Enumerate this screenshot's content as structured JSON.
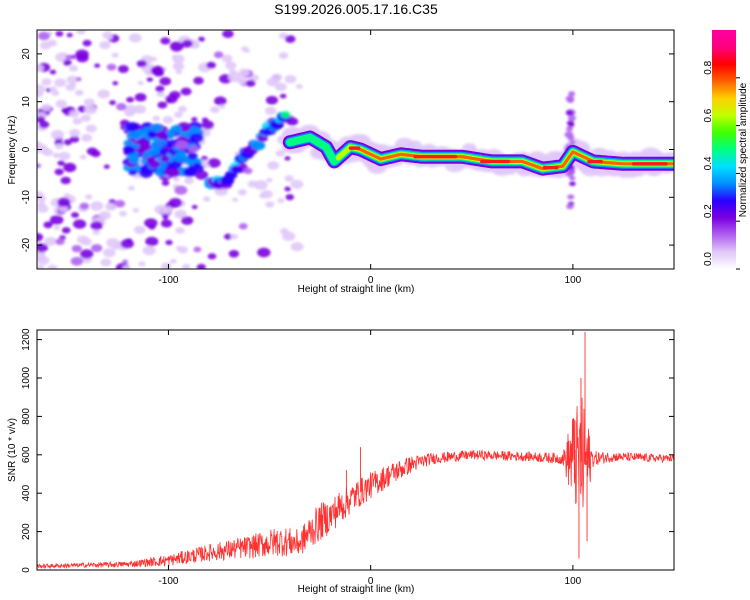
{
  "title": "S199.2026.005.17.16.C35",
  "chart_data": [
    {
      "type": "heatmap",
      "name": "spectrogram",
      "xlabel": "Height of straight line (km)",
      "ylabel": "Frequency (Hz)",
      "xlim": [
        -165,
        150
      ],
      "ylim": [
        -25,
        25
      ],
      "xticks": [
        -100,
        0,
        100
      ],
      "yticks": [
        -20,
        -10,
        0,
        10,
        20
      ],
      "xtick_labels": [
        "-100",
        "0",
        "100"
      ],
      "ytick_labels": [
        "-20",
        "-10",
        "0",
        "10",
        "20"
      ],
      "colorbar": {
        "label": "Normalized spectral amplitude",
        "range": [
          0,
          1
        ],
        "ticks": [
          0.0,
          0.2,
          0.4,
          0.6,
          0.8
        ],
        "tick_labels": [
          "0.0",
          "0.2",
          "0.4",
          "0.6",
          "0.8"
        ],
        "colors": [
          "#ffffff",
          "#e0c8f8",
          "#b060f0",
          "#7a00e0",
          "#2a00ff",
          "#0090ff",
          "#00e0ff",
          "#00ff80",
          "#40ff00",
          "#c0ff00",
          "#ffd000",
          "#ff6000",
          "#ff0000",
          "#ff0080",
          "#ff00a0"
        ]
      },
      "ridge": [
        {
          "x": -40,
          "y": 1.5,
          "a": 0.5
        },
        {
          "x": -30,
          "y": 2.5,
          "a": 0.5
        },
        {
          "x": -22,
          "y": 0.5,
          "a": 0.5
        },
        {
          "x": -18,
          "y": -2.5,
          "a": 0.6
        },
        {
          "x": -10,
          "y": 0.5,
          "a": 0.7
        },
        {
          "x": -5,
          "y": 0.0,
          "a": 0.8
        },
        {
          "x": 5,
          "y": -2.0,
          "a": 0.85
        },
        {
          "x": 15,
          "y": -1.0,
          "a": 0.85
        },
        {
          "x": 25,
          "y": -1.5,
          "a": 0.9
        },
        {
          "x": 45,
          "y": -1.5,
          "a": 0.9
        },
        {
          "x": 60,
          "y": -2.5,
          "a": 0.9
        },
        {
          "x": 75,
          "y": -2.5,
          "a": 0.85
        },
        {
          "x": 85,
          "y": -4.0,
          "a": 0.85
        },
        {
          "x": 95,
          "y": -3.5,
          "a": 0.8
        },
        {
          "x": 100,
          "y": -0.5,
          "a": 0.8
        },
        {
          "x": 110,
          "y": -2.5,
          "a": 0.9
        },
        {
          "x": 125,
          "y": -3.0,
          "a": 0.85
        },
        {
          "x": 150,
          "y": -3.0,
          "a": 0.8
        }
      ],
      "diagonal_branch": [
        {
          "x": -80,
          "y": -7,
          "a": 0.3
        },
        {
          "x": -70,
          "y": -6,
          "a": 0.35
        },
        {
          "x": -62,
          "y": -1,
          "a": 0.35
        },
        {
          "x": -55,
          "y": 2,
          "a": 0.35
        },
        {
          "x": -48,
          "y": 5,
          "a": 0.35
        },
        {
          "x": -42,
          "y": 7,
          "a": 0.4
        }
      ],
      "early_cluster": {
        "x": [
          -120,
          -85
        ],
        "y": [
          -5,
          5
        ],
        "a": 0.35
      }
    },
    {
      "type": "line",
      "name": "snr",
      "xlabel": "Height of straight line (km)",
      "ylabel": "SNR (10 * v/v)",
      "xlim": [
        -165,
        150
      ],
      "ylim": [
        0,
        1250
      ],
      "xticks": [
        -100,
        0,
        100
      ],
      "yticks": [
        0,
        200,
        400,
        600,
        800,
        1000,
        1200
      ],
      "xtick_labels": [
        "-100",
        "0",
        "100"
      ],
      "ytick_labels": [
        "0",
        "200",
        "400",
        "600",
        "800",
        "1000",
        "1200"
      ],
      "color": "#ff3030",
      "trend": {
        "x": [
          -165,
          -120,
          -100,
          -80,
          -60,
          -45,
          -35,
          -30,
          -25,
          -20,
          -15,
          -10,
          0,
          10,
          20,
          30,
          50,
          80,
          95,
          100,
          105,
          110,
          120,
          150
        ],
        "y": [
          20,
          30,
          50,
          90,
          120,
          150,
          140,
          200,
          250,
          280,
          330,
          370,
          440,
          500,
          550,
          580,
          600,
          590,
          580,
          580,
          560,
          580,
          590,
          580
        ],
        "noise": [
          10,
          15,
          30,
          45,
          60,
          80,
          70,
          90,
          100,
          90,
          90,
          80,
          70,
          60,
          45,
          30,
          25,
          25,
          30,
          250,
          350,
          40,
          25,
          20
        ]
      },
      "peaks": [
        {
          "x": 104,
          "y": 1000
        },
        {
          "x": 106,
          "y": 1240
        },
        {
          "x": 101,
          "y": 780
        },
        {
          "x": 103,
          "y": 60
        },
        {
          "x": 107,
          "y": 150
        },
        {
          "x": -5,
          "y": 640
        },
        {
          "x": -12,
          "y": 520
        }
      ]
    }
  ]
}
